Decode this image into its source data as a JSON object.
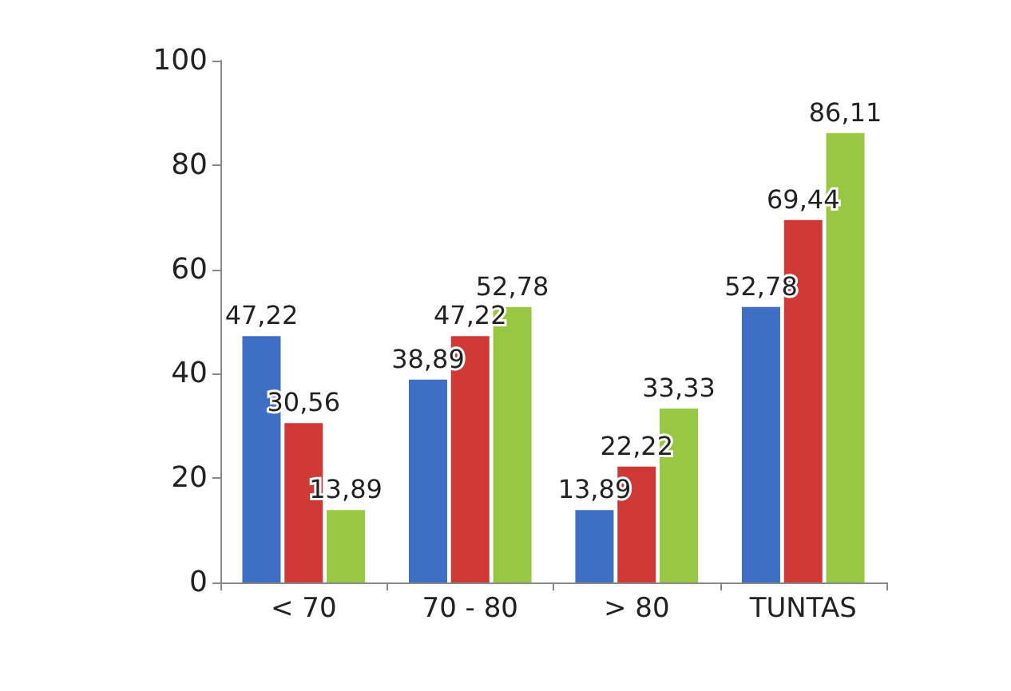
{
  "chart_data": {
    "type": "bar",
    "categories": [
      "< 70",
      "70 - 80",
      "> 80",
      "TUNTAS"
    ],
    "series": [
      {
        "color": "#3f6fc4",
        "values": [
          47.22,
          38.89,
          13.89,
          52.78
        ],
        "value_labels": [
          "47,22",
          "38,89",
          "13,89",
          "52,78"
        ]
      },
      {
        "color": "#d03a36",
        "values": [
          30.56,
          47.22,
          22.22,
          69.44
        ],
        "value_labels": [
          "30,56",
          "47,22",
          "22,22",
          "69,44"
        ]
      },
      {
        "color": "#98c743",
        "values": [
          13.89,
          52.78,
          33.33,
          86.11
        ],
        "value_labels": [
          "13,89",
          "52,78",
          "33,33",
          "86,11"
        ]
      }
    ],
    "ylim": [
      0,
      100
    ],
    "yticks": [
      0,
      20,
      40,
      60,
      80,
      100
    ],
    "grid": false
  }
}
